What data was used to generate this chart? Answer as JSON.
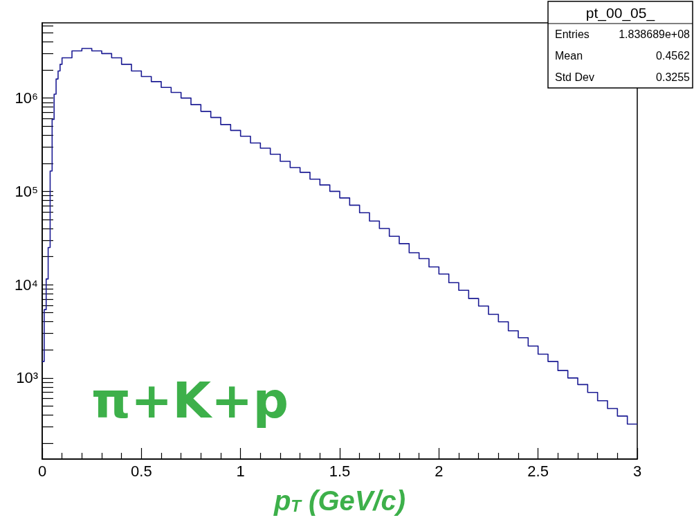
{
  "chart_data": {
    "type": "histogram",
    "xlabel": "p$_{T}$ (GeV/c)",
    "annotations": [
      "pt_00_05_",
      "Entries",
      "1.838689e+08",
      "Mean",
      "0.4562",
      "Std Dev",
      "0.3255",
      "π+K+p"
    ],
    "bins": [
      0,
      0.01,
      0.02,
      0.03,
      0.04,
      0.05,
      0.06,
      0.07,
      0.08,
      0.09,
      0.1,
      0.15,
      0.2,
      0.25,
      0.3,
      0.35,
      0.4,
      0.45,
      0.5,
      0.55,
      0.6,
      0.65,
      0.7,
      0.75,
      0.8,
      0.85,
      0.9,
      0.95,
      1,
      1.05,
      1.1,
      1.15,
      1.2,
      1.25,
      1.3,
      1.35,
      1.4,
      1.45,
      1.5,
      1.55,
      1.6,
      1.65,
      1.7,
      1.75,
      1.8,
      1.85,
      1.9,
      1.95,
      2,
      2.05,
      2.1,
      2.15,
      2.2,
      2.25,
      2.3,
      2.35,
      2.4,
      2.45,
      2.5,
      2.55,
      2.6,
      2.65,
      2.7,
      2.75,
      2.8,
      2.85,
      2.9,
      2.95,
      3
    ],
    "values": [
      1500,
      5400,
      11500,
      25000,
      165000,
      590000,
      1100000,
      1600000,
      1950000,
      2300000,
      2700000,
      3200000,
      3400000,
      3200000,
      3000000,
      2700000,
      2300000,
      1950000,
      1700000,
      1500000,
      1300000,
      1150000,
      1000000,
      850000,
      720000,
      620000,
      520000,
      450000,
      390000,
      330000,
      290000,
      250000,
      210000,
      180000,
      160000,
      135000,
      117000,
      100000,
      85000,
      71000,
      59000,
      48000,
      40000,
      33000,
      27500,
      22000,
      19000,
      15500,
      13000,
      10500,
      8700,
      7100,
      5900,
      4800,
      4000,
      3200,
      2700,
      2200,
      1800,
      1500,
      1200,
      1000,
      850,
      700,
      570,
      470,
      390,
      320
    ],
    "color": "#1c1c94",
    "log": "y",
    "grid": false,
    "xlim": [
      0,
      3
    ],
    "xticks": [
      0,
      0.5,
      1,
      1.5,
      2,
      2.5,
      3
    ],
    "ylim": [
      135,
      6400000
    ],
    "yticks": [
      {
        "value": 200,
        "label": null
      },
      {
        "value": 300,
        "label": null
      },
      {
        "value": 400,
        "label": null
      },
      {
        "value": 500,
        "label": null
      },
      {
        "value": 600,
        "label": null
      },
      {
        "value": 700,
        "label": null
      },
      {
        "value": 800,
        "label": null
      },
      {
        "value": 900,
        "label": null
      },
      {
        "value": 1000,
        "label": "10³"
      },
      {
        "value": 2000,
        "label": null
      },
      {
        "value": 3000,
        "label": null
      },
      {
        "value": 4000,
        "label": null
      },
      {
        "value": 5000,
        "label": null
      },
      {
        "value": 6000,
        "label": null
      },
      {
        "value": 7000,
        "label": null
      },
      {
        "value": 8000,
        "label": null
      },
      {
        "value": 9000,
        "label": null
      },
      {
        "value": 10000,
        "label": "10⁴"
      },
      {
        "value": 20000,
        "label": null
      },
      {
        "value": 30000,
        "label": null
      },
      {
        "value": 40000,
        "label": null
      },
      {
        "value": 50000,
        "label": null
      },
      {
        "value": 60000,
        "label": null
      },
      {
        "value": 70000,
        "label": null
      },
      {
        "value": 80000,
        "label": null
      },
      {
        "value": 90000,
        "label": null
      },
      {
        "value": 100000,
        "label": "10⁵"
      },
      {
        "value": 200000,
        "label": null
      },
      {
        "value": 300000,
        "label": null
      },
      {
        "value": 400000,
        "label": null
      },
      {
        "value": 500000,
        "label": null
      },
      {
        "value": 600000,
        "label": null
      },
      {
        "value": 700000,
        "label": null
      },
      {
        "value": 800000,
        "label": null
      },
      {
        "value": 900000,
        "label": null
      },
      {
        "value": 1000000,
        "label": "10⁶"
      },
      {
        "value": 2000000,
        "label": null
      },
      {
        "value": 3000000,
        "label": null
      },
      {
        "value": 4000000,
        "label": null
      },
      {
        "value": 5000000,
        "label": null
      },
      {
        "value": 6000000,
        "label": null
      }
    ]
  }
}
